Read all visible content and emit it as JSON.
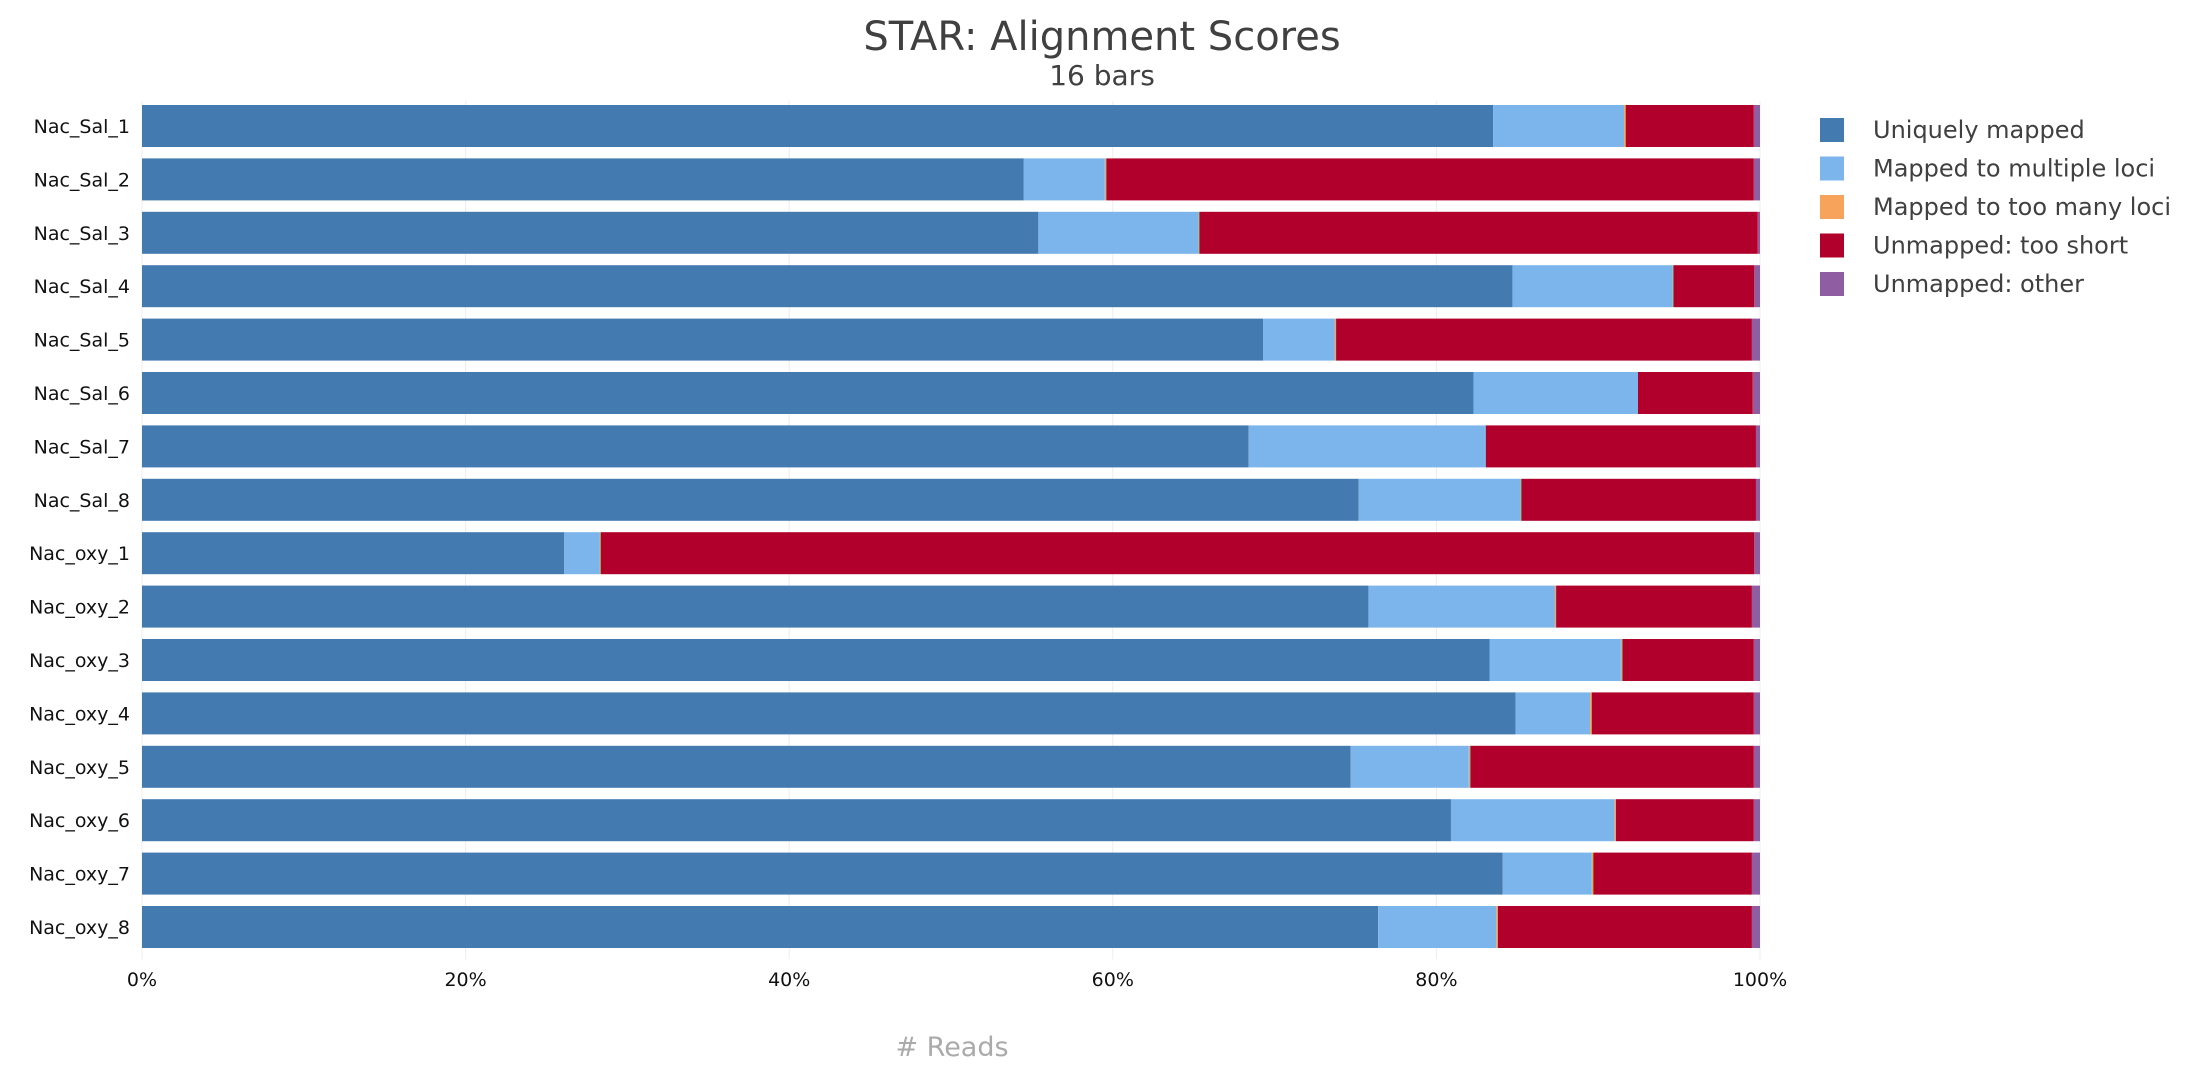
{
  "chart_data": {
    "type": "bar",
    "orientation": "horizontal",
    "stacked": true,
    "percent": true,
    "title": "STAR: Alignment Scores",
    "subtitle": "16 bars",
    "xlabel": "# Reads",
    "xlim": [
      0,
      100
    ],
    "xticks": [
      "0%",
      "20%",
      "40%",
      "60%",
      "80%",
      "100%"
    ],
    "grid": true,
    "legend_position": "right",
    "categories": [
      "Nac_Sal_1",
      "Nac_Sal_2",
      "Nac_Sal_3",
      "Nac_Sal_4",
      "Nac_Sal_5",
      "Nac_Sal_6",
      "Nac_Sal_7",
      "Nac_Sal_8",
      "Nac_oxy_1",
      "Nac_oxy_2",
      "Nac_oxy_3",
      "Nac_oxy_4",
      "Nac_oxy_5",
      "Nac_oxy_6",
      "Nac_oxy_7",
      "Nac_oxy_8"
    ],
    "series": [
      {
        "name": "Uniquely mapped",
        "color": "#437bb1",
        "values": [
          83.5,
          54.5,
          55.4,
          84.7,
          69.3,
          82.3,
          68.4,
          75.2,
          26.1,
          75.8,
          83.3,
          84.9,
          74.7,
          80.9,
          84.1,
          76.4
        ]
      },
      {
        "name": "Mapped to multiple loci",
        "color": "#7cb5ec",
        "values": [
          8.1,
          5.0,
          9.9,
          9.9,
          4.4,
          10.1,
          14.6,
          10.0,
          2.2,
          11.5,
          8.1,
          4.6,
          7.3,
          10.1,
          5.5,
          7.3
        ]
      },
      {
        "name": "Mapped to too many loci",
        "color": "#f7a35c",
        "values": [
          0.1,
          0.1,
          0.05,
          0.05,
          0.1,
          0.05,
          0.05,
          0.05,
          0.05,
          0.1,
          0.1,
          0.1,
          0.1,
          0.1,
          0.1,
          0.1
        ]
      },
      {
        "name": "Unmapped: too short",
        "color": "#b1002b",
        "values": [
          7.9,
          40.0,
          34.5,
          5.0,
          25.7,
          7.1,
          16.7,
          14.5,
          71.3,
          12.1,
          8.1,
          10.0,
          17.5,
          8.5,
          9.8,
          15.7
        ]
      },
      {
        "name": "Unmapped: other",
        "color": "#8f5ea2",
        "values": [
          0.4,
          0.4,
          0.15,
          0.35,
          0.5,
          0.45,
          0.25,
          0.25,
          0.35,
          0.5,
          0.4,
          0.4,
          0.4,
          0.4,
          0.5,
          0.5
        ]
      }
    ]
  }
}
